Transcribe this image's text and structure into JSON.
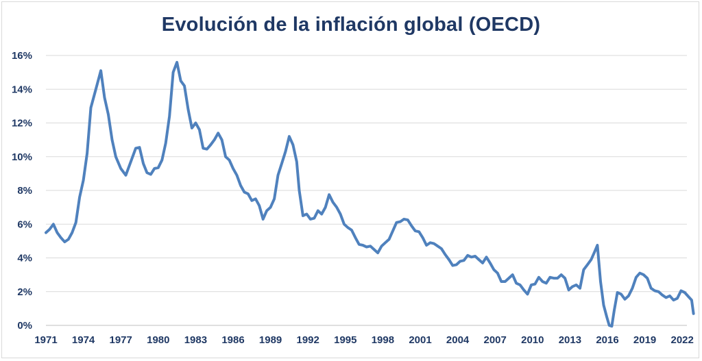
{
  "chart_data": {
    "type": "line",
    "title": "Evolución de la inflación global (OECD)",
    "xlabel": "",
    "ylabel": "",
    "xlim": [
      1971,
      2022.9
    ],
    "ylim": [
      0,
      16
    ],
    "grid": true,
    "color": "#4f81bd",
    "x_ticks": [
      1971,
      1974,
      1977,
      1980,
      1983,
      1986,
      1989,
      1992,
      1995,
      1998,
      2001,
      2004,
      2007,
      2010,
      2013,
      2016,
      2019,
      2022
    ],
    "x_tick_labels": [
      "1971",
      "1974",
      "1977",
      "1980",
      "1983",
      "1986",
      "1989",
      "1992",
      "1995",
      "1998",
      "2001",
      "2004",
      "2007",
      "2010",
      "2013",
      "2016",
      "2019",
      "2022"
    ],
    "y_ticks": [
      0,
      2,
      4,
      6,
      8,
      10,
      12,
      14,
      16
    ],
    "y_tick_labels": [
      "0%",
      "2%",
      "4%",
      "6%",
      "8%",
      "10%",
      "12%",
      "14%",
      "16%"
    ],
    "series": [
      {
        "points": [
          [
            1971.0,
            5.5
          ],
          [
            1971.3,
            5.7
          ],
          [
            1971.6,
            6.0
          ],
          [
            1971.9,
            5.5
          ],
          [
            1972.2,
            5.2
          ],
          [
            1972.5,
            4.95
          ],
          [
            1972.8,
            5.1
          ],
          [
            1973.1,
            5.5
          ],
          [
            1973.4,
            6.1
          ],
          [
            1973.7,
            7.6
          ],
          [
            1974.0,
            8.6
          ],
          [
            1974.3,
            10.2
          ],
          [
            1974.6,
            12.9
          ],
          [
            1975.0,
            14.0
          ],
          [
            1975.4,
            15.1
          ],
          [
            1975.7,
            13.5
          ],
          [
            1976.0,
            12.5
          ],
          [
            1976.3,
            11.0
          ],
          [
            1976.6,
            10.0
          ],
          [
            1977.0,
            9.3
          ],
          [
            1977.4,
            8.9
          ],
          [
            1977.8,
            9.7
          ],
          [
            1978.2,
            10.5
          ],
          [
            1978.5,
            10.55
          ],
          [
            1978.8,
            9.6
          ],
          [
            1979.1,
            9.05
          ],
          [
            1979.4,
            8.95
          ],
          [
            1979.7,
            9.3
          ],
          [
            1980.0,
            9.35
          ],
          [
            1980.3,
            9.8
          ],
          [
            1980.6,
            10.8
          ],
          [
            1980.9,
            12.4
          ],
          [
            1981.2,
            15.0
          ],
          [
            1981.5,
            15.6
          ],
          [
            1981.8,
            14.5
          ],
          [
            1982.1,
            14.2
          ],
          [
            1982.4,
            12.8
          ],
          [
            1982.7,
            11.7
          ],
          [
            1983.0,
            12.0
          ],
          [
            1983.3,
            11.6
          ],
          [
            1983.6,
            10.5
          ],
          [
            1983.9,
            10.45
          ],
          [
            1984.2,
            10.7
          ],
          [
            1984.5,
            11.0
          ],
          [
            1984.8,
            11.4
          ],
          [
            1985.1,
            11.0
          ],
          [
            1985.4,
            10.0
          ],
          [
            1985.7,
            9.8
          ],
          [
            1986.0,
            9.3
          ],
          [
            1986.3,
            8.9
          ],
          [
            1986.6,
            8.3
          ],
          [
            1986.9,
            7.9
          ],
          [
            1987.2,
            7.8
          ],
          [
            1987.5,
            7.4
          ],
          [
            1987.8,
            7.5
          ],
          [
            1988.1,
            7.1
          ],
          [
            1988.4,
            6.3
          ],
          [
            1988.7,
            6.8
          ],
          [
            1989.0,
            7.0
          ],
          [
            1989.3,
            7.5
          ],
          [
            1989.6,
            8.9
          ],
          [
            1989.9,
            9.6
          ],
          [
            1990.2,
            10.3
          ],
          [
            1990.5,
            11.2
          ],
          [
            1990.8,
            10.7
          ],
          [
            1991.1,
            9.7
          ],
          [
            1991.3,
            8.0
          ],
          [
            1991.6,
            6.5
          ],
          [
            1991.9,
            6.6
          ],
          [
            1992.2,
            6.3
          ],
          [
            1992.5,
            6.35
          ],
          [
            1992.8,
            6.8
          ],
          [
            1993.1,
            6.6
          ],
          [
            1993.4,
            7.0
          ],
          [
            1993.7,
            7.75
          ],
          [
            1994.0,
            7.3
          ],
          [
            1994.3,
            7.0
          ],
          [
            1994.6,
            6.6
          ],
          [
            1994.9,
            6.0
          ],
          [
            1995.2,
            5.8
          ],
          [
            1995.5,
            5.65
          ],
          [
            1995.8,
            5.2
          ],
          [
            1996.1,
            4.8
          ],
          [
            1996.4,
            4.75
          ],
          [
            1996.7,
            4.65
          ],
          [
            1997.0,
            4.7
          ],
          [
            1997.3,
            4.5
          ],
          [
            1997.6,
            4.3
          ],
          [
            1997.9,
            4.7
          ],
          [
            1998.2,
            4.9
          ],
          [
            1998.5,
            5.1
          ],
          [
            1998.8,
            5.6
          ],
          [
            1999.1,
            6.1
          ],
          [
            1999.4,
            6.15
          ],
          [
            1999.7,
            6.3
          ],
          [
            2000.0,
            6.25
          ],
          [
            2000.3,
            5.9
          ],
          [
            2000.6,
            5.6
          ],
          [
            2000.9,
            5.55
          ],
          [
            2001.2,
            5.2
          ],
          [
            2001.5,
            4.75
          ],
          [
            2001.8,
            4.9
          ],
          [
            2002.1,
            4.85
          ],
          [
            2002.4,
            4.7
          ],
          [
            2002.7,
            4.55
          ],
          [
            2003.0,
            4.2
          ],
          [
            2003.3,
            3.9
          ],
          [
            2003.6,
            3.55
          ],
          [
            2003.9,
            3.6
          ],
          [
            2004.2,
            3.8
          ],
          [
            2004.5,
            3.85
          ],
          [
            2004.8,
            4.15
          ],
          [
            2005.1,
            4.05
          ],
          [
            2005.4,
            4.1
          ],
          [
            2005.7,
            3.9
          ],
          [
            2006.0,
            3.7
          ],
          [
            2006.3,
            4.05
          ],
          [
            2006.6,
            3.7
          ],
          [
            2006.9,
            3.3
          ],
          [
            2007.2,
            3.1
          ],
          [
            2007.5,
            2.6
          ],
          [
            2007.8,
            2.6
          ],
          [
            2008.1,
            2.8
          ],
          [
            2008.4,
            3.0
          ],
          [
            2008.7,
            2.5
          ],
          [
            2009.0,
            2.4
          ],
          [
            2009.3,
            2.1
          ],
          [
            2009.6,
            1.85
          ],
          [
            2009.9,
            2.4
          ],
          [
            2010.2,
            2.45
          ],
          [
            2010.5,
            2.85
          ],
          [
            2010.8,
            2.6
          ],
          [
            2011.1,
            2.5
          ],
          [
            2011.4,
            2.85
          ],
          [
            2011.7,
            2.8
          ],
          [
            2012.0,
            2.8
          ],
          [
            2012.3,
            3.0
          ],
          [
            2012.6,
            2.8
          ],
          [
            2012.9,
            2.1
          ],
          [
            2013.2,
            2.3
          ],
          [
            2013.5,
            2.4
          ],
          [
            2013.8,
            2.2
          ],
          [
            2014.1,
            3.3
          ],
          [
            2014.4,
            3.6
          ],
          [
            2014.7,
            3.9
          ],
          [
            2015.0,
            4.4
          ],
          [
            2015.2,
            4.75
          ],
          [
            2015.45,
            2.6
          ],
          [
            2015.7,
            1.2
          ],
          [
            2015.95,
            0.5
          ],
          [
            2016.15,
            0.0
          ],
          [
            2016.35,
            -0.05
          ],
          [
            2016.55,
            0.9
          ],
          [
            2016.8,
            1.95
          ],
          [
            2017.1,
            1.85
          ],
          [
            2017.4,
            1.55
          ],
          [
            2017.7,
            1.75
          ],
          [
            2018.0,
            2.2
          ],
          [
            2018.3,
            2.85
          ],
          [
            2018.6,
            3.1
          ],
          [
            2018.9,
            3.0
          ],
          [
            2019.2,
            2.8
          ],
          [
            2019.5,
            2.2
          ],
          [
            2019.8,
            2.05
          ],
          [
            2020.1,
            2.0
          ],
          [
            2020.4,
            1.8
          ],
          [
            2020.7,
            1.65
          ],
          [
            2021.0,
            1.75
          ],
          [
            2021.3,
            1.5
          ],
          [
            2021.6,
            1.6
          ],
          [
            2021.9,
            2.05
          ],
          [
            2022.2,
            1.95
          ],
          [
            2022.5,
            1.7
          ],
          [
            2022.75,
            1.5
          ],
          [
            2022.9,
            0.7
          ]
        ]
      }
    ]
  }
}
